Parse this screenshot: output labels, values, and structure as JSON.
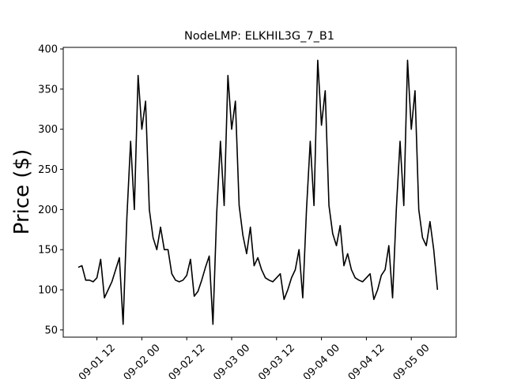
{
  "chart_data": {
    "type": "line",
    "title": "NodeLMP: ELKHIL3G_7_B1",
    "y_label": "Price ($)",
    "x": [
      "09-01 07",
      "09-01 08",
      "09-01 09",
      "09-01 10",
      "09-01 11",
      "09-01 12",
      "09-01 13",
      "09-01 14",
      "09-01 15",
      "09-01 16",
      "09-01 17",
      "09-01 18",
      "09-01 19",
      "09-01 20",
      "09-01 21",
      "09-01 22",
      "09-01 23",
      "09-02 00",
      "09-02 01",
      "09-02 02",
      "09-02 03",
      "09-02 04",
      "09-02 05",
      "09-02 06",
      "09-02 07",
      "09-02 08",
      "09-02 09",
      "09-02 10",
      "09-02 11",
      "09-02 12",
      "09-02 13",
      "09-02 14",
      "09-02 15",
      "09-02 16",
      "09-02 17",
      "09-02 18",
      "09-02 19",
      "09-02 20",
      "09-02 21",
      "09-02 22",
      "09-02 23",
      "09-03 00",
      "09-03 01",
      "09-03 02",
      "09-03 03",
      "09-03 04",
      "09-03 05",
      "09-03 06",
      "09-03 07",
      "09-03 08",
      "09-03 09",
      "09-03 10",
      "09-03 11",
      "09-03 12",
      "09-03 13",
      "09-03 14",
      "09-03 15",
      "09-03 16",
      "09-03 17",
      "09-03 18",
      "09-03 19",
      "09-03 20",
      "09-03 21",
      "09-03 22",
      "09-03 23",
      "09-04 00",
      "09-04 01",
      "09-04 02",
      "09-04 03",
      "09-04 04",
      "09-04 05",
      "09-04 06",
      "09-04 07",
      "09-04 08",
      "09-04 09",
      "09-04 10",
      "09-04 11",
      "09-04 12",
      "09-04 13",
      "09-04 14",
      "09-04 15",
      "09-04 16",
      "09-04 17",
      "09-04 18",
      "09-04 19",
      "09-04 20",
      "09-04 21",
      "09-04 22",
      "09-04 23",
      "09-05 00",
      "09-05 01",
      "09-05 02",
      "09-05 03",
      "09-05 04",
      "09-05 05",
      "09-05 06",
      "09-05 07"
    ],
    "series": [
      {
        "color": "#000000",
        "values": [
          128,
          130,
          112,
          112,
          110,
          115,
          138,
          90,
          100,
          110,
          125,
          140,
          57,
          190,
          285,
          200,
          367,
          300,
          335,
          200,
          165,
          150,
          178,
          150,
          150,
          120,
          112,
          110,
          112,
          118,
          138,
          92,
          98,
          112,
          128,
          142,
          57,
          195,
          285,
          205,
          367,
          300,
          335,
          205,
          168,
          145,
          178,
          130,
          140,
          125,
          115,
          112,
          110,
          115,
          120,
          88,
          100,
          115,
          125,
          150,
          90,
          200,
          285,
          205,
          386,
          305,
          348,
          205,
          170,
          155,
          180,
          130,
          145,
          125,
          115,
          112,
          110,
          115,
          120,
          88,
          100,
          118,
          125,
          155,
          90,
          200,
          285,
          205,
          386,
          300,
          348,
          200,
          165,
          155,
          185,
          150,
          100
        ]
      }
    ],
    "xlim": [
      "09-01 03",
      "09-05 12"
    ],
    "xticks": [
      "09-01 12",
      "09-02 00",
      "09-02 12",
      "09-03 00",
      "09-03 12",
      "09-04 00",
      "09-04 12",
      "09-05 00"
    ],
    "ylim": [
      41,
      402
    ],
    "yticks": [
      50,
      100,
      150,
      200,
      250,
      300,
      350,
      400
    ]
  }
}
